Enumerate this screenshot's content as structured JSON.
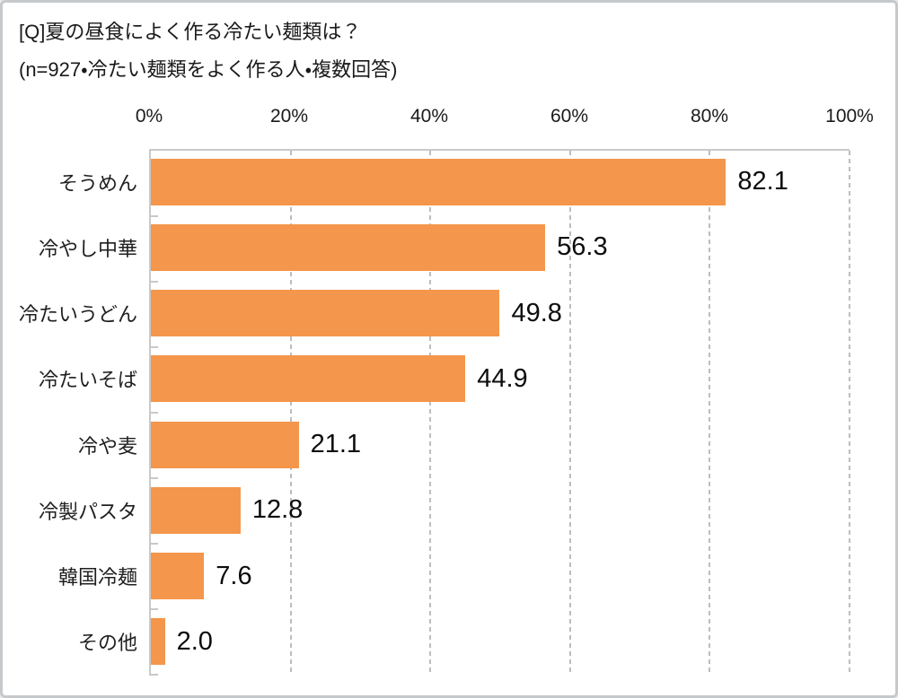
{
  "title": {
    "line1": "[Q]夏の昼食によく作る冷たい麺類は？",
    "line2": "(n=927・冷たい麺類をよく作る人・複数回答)"
  },
  "chart_data": {
    "type": "bar",
    "orientation": "horizontal",
    "title": "[Q]夏の昼食によく作る冷たい麺類は？",
    "subtitle": "(n=927・冷たい麺類をよく作る人・複数回答)",
    "sample_size": "n=927",
    "categories": [
      "そうめん",
      "冷やし中華",
      "冷たいうどん",
      "冷たいそば",
      "冷や麦",
      "冷製パスタ",
      "韓国冷麺",
      "その他"
    ],
    "values": [
      82.1,
      56.3,
      49.8,
      44.9,
      21.1,
      12.8,
      7.6,
      2.0
    ],
    "value_labels": [
      "82.1",
      "56.3",
      "49.8",
      "44.9",
      "21.1",
      "12.8",
      "7.6",
      "2.0"
    ],
    "xlabel": "",
    "ylabel": "",
    "x_axis": {
      "position": "top",
      "min": 0,
      "max": 100,
      "tick_values": [
        0,
        20,
        40,
        60,
        80,
        100
      ],
      "tick_labels": [
        "0%",
        "20%",
        "40%",
        "60%",
        "80%",
        "100%"
      ]
    },
    "grid": "vertical-dashed",
    "legend": "none",
    "colors": {
      "bar": "#F4964B",
      "grid": "#BDBDBD",
      "axis": "#C9C9C9",
      "text": "#1A1A1A",
      "frame_border": "#C6C9CB",
      "background": "#FFFFFF"
    }
  }
}
